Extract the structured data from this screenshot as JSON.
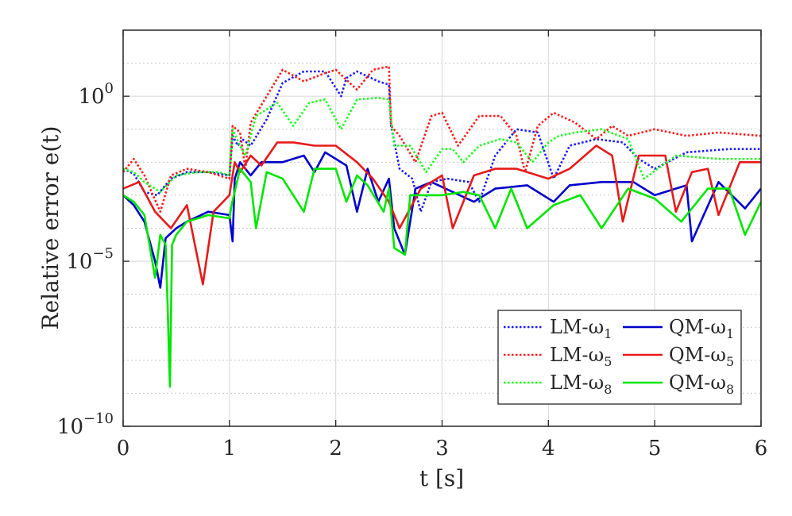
{
  "chart_data": {
    "type": "line",
    "xlabel": "t [s]",
    "ylabel": "Relative error e(t)",
    "xlim": [
      0,
      6
    ],
    "ylim_exponent": [
      -10,
      2
    ],
    "y_scale": "log",
    "grid": true,
    "legend_placement": "bottom-right",
    "x_ticks": [
      {
        "value": 0,
        "label": "0"
      },
      {
        "value": 1,
        "label": "1"
      },
      {
        "value": 2,
        "label": "2"
      },
      {
        "value": 3,
        "label": "3"
      },
      {
        "value": 4,
        "label": "4"
      },
      {
        "value": 5,
        "label": "5"
      },
      {
        "value": 6,
        "label": "6"
      }
    ],
    "y_ticks": [
      {
        "exponent": 0,
        "base": "10",
        "power": "0"
      },
      {
        "exponent": -5,
        "base": "10",
        "power": "−5"
      },
      {
        "exponent": -10,
        "base": "10",
        "power": "−10"
      }
    ],
    "series": [
      {
        "name": "LM-ω1",
        "name_main": "LM-ω",
        "name_sub": "1",
        "color": "#1a1aff",
        "style": "dotted",
        "x": [
          0,
          0.1,
          0.2,
          0.32,
          0.45,
          0.6,
          0.8,
          1.0,
          1.03,
          1.08,
          1.12,
          1.2,
          1.35,
          1.5,
          1.7,
          1.9,
          2.05,
          2.1,
          2.2,
          2.4,
          2.5,
          2.52,
          2.6,
          2.72,
          2.8,
          2.9,
          3.05,
          3.25,
          3.35,
          3.5,
          3.7,
          3.9,
          4.05,
          4.2,
          4.45,
          4.7,
          4.85,
          5.0,
          5.3,
          5.7,
          6.0
        ],
        "y_exp": [
          -2.2,
          -2.35,
          -2.9,
          -3.0,
          -2.5,
          -2.3,
          -2.3,
          -2.4,
          -1.2,
          -1.5,
          -1.3,
          -1.5,
          -0.7,
          0.4,
          0.75,
          0.75,
          0.0,
          0.55,
          0.75,
          0.45,
          0.35,
          -0.9,
          -2.2,
          -2.5,
          -3.5,
          -2.6,
          -2.5,
          -2.6,
          -3.2,
          -1.8,
          -1.0,
          -1.1,
          -2.5,
          -1.5,
          -1.3,
          -1.4,
          -1.9,
          -2.2,
          -1.7,
          -1.6,
          -1.6
        ]
      },
      {
        "name": "QM-ω1",
        "name_main": "QM-ω",
        "name_sub": "1",
        "color": "#0000cc",
        "style": "solid",
        "x": [
          0,
          0.1,
          0.2,
          0.3,
          0.35,
          0.4,
          0.5,
          0.6,
          0.8,
          1.0,
          1.03,
          1.05,
          1.1,
          1.2,
          1.3,
          1.5,
          1.7,
          1.8,
          1.9,
          2.0,
          2.1,
          2.2,
          2.3,
          2.4,
          2.5,
          2.55,
          2.65,
          2.75,
          2.9,
          3.1,
          3.3,
          3.5,
          3.8,
          4.05,
          4.2,
          4.5,
          4.8,
          5.0,
          5.3,
          5.35,
          5.6,
          5.85,
          6.0
        ],
        "y_exp": [
          -3.0,
          -3.3,
          -3.8,
          -5.0,
          -5.8,
          -4.3,
          -4.0,
          -3.8,
          -3.5,
          -3.6,
          -4.4,
          -2.5,
          -2.0,
          -2.4,
          -2.0,
          -2.0,
          -1.8,
          -2.3,
          -1.7,
          -1.9,
          -2.1,
          -3.5,
          -2.2,
          -3.2,
          -2.5,
          -4.0,
          -4.8,
          -2.8,
          -2.6,
          -2.9,
          -3.2,
          -2.8,
          -2.7,
          -3.2,
          -2.7,
          -2.6,
          -2.6,
          -3.0,
          -2.7,
          -4.4,
          -2.6,
          -3.4,
          -2.8
        ]
      },
      {
        "name": "LM-ω5",
        "name_main": "LM-ω",
        "name_sub": "5",
        "color": "#ff1a1a",
        "style": "dotted",
        "x": [
          0,
          0.1,
          0.2,
          0.35,
          0.45,
          0.6,
          0.8,
          1.0,
          1.03,
          1.1,
          1.15,
          1.2,
          1.35,
          1.5,
          1.7,
          1.9,
          2.0,
          2.2,
          2.35,
          2.5,
          2.52,
          2.6,
          2.75,
          2.9,
          3.0,
          3.15,
          3.35,
          3.55,
          3.7,
          3.78,
          3.9,
          4.05,
          4.25,
          4.45,
          4.6,
          4.75,
          5.0,
          5.3,
          5.6,
          6.0
        ],
        "y_exp": [
          -2.3,
          -1.9,
          -2.4,
          -3.5,
          -2.4,
          -2.2,
          -2.3,
          -2.5,
          -0.9,
          -1.1,
          -2.2,
          -0.8,
          0.0,
          0.8,
          0.45,
          0.7,
          0.8,
          0.2,
          0.8,
          0.9,
          -0.9,
          -1.2,
          -2.0,
          -0.6,
          -0.5,
          -1.5,
          -0.6,
          -0.6,
          -1.2,
          -2.3,
          -0.9,
          -0.5,
          -0.8,
          -1.3,
          -0.9,
          -1.2,
          -1.0,
          -1.2,
          -1.1,
          -1.2
        ]
      },
      {
        "name": "QM-ω5",
        "name_main": "QM-ω",
        "name_sub": "5",
        "color": "#e61a1a",
        "style": "solid",
        "x": [
          0,
          0.15,
          0.3,
          0.45,
          0.6,
          0.75,
          0.85,
          1.0,
          1.05,
          1.1,
          1.2,
          1.3,
          1.45,
          1.6,
          1.8,
          2.0,
          2.2,
          2.35,
          2.5,
          2.6,
          2.8,
          3.0,
          3.1,
          3.3,
          3.5,
          3.7,
          4.0,
          4.2,
          4.45,
          4.6,
          4.7,
          4.85,
          5.1,
          5.2,
          5.35,
          5.5,
          5.6,
          5.8,
          6.0
        ],
        "y_exp": [
          -2.8,
          -2.6,
          -3.5,
          -4.0,
          -3.3,
          -5.7,
          -3.5,
          -3.0,
          -2.0,
          -2.3,
          -1.8,
          -2.1,
          -1.4,
          -1.4,
          -1.5,
          -1.5,
          -2.0,
          -2.5,
          -3.2,
          -4.0,
          -2.8,
          -2.4,
          -4.0,
          -2.4,
          -2.2,
          -2.2,
          -2.5,
          -2.2,
          -1.5,
          -1.8,
          -3.8,
          -1.8,
          -1.8,
          -3.5,
          -2.3,
          -2.2,
          -3.6,
          -2.0,
          -2.0
        ]
      },
      {
        "name": "LM-ω8",
        "name_main": "LM-ω",
        "name_sub": "8",
        "color": "#1aff1a",
        "style": "dotted",
        "x": [
          0,
          0.1,
          0.2,
          0.35,
          0.5,
          0.7,
          0.9,
          1.0,
          1.03,
          1.1,
          1.15,
          1.25,
          1.45,
          1.6,
          1.75,
          1.9,
          2.05,
          2.2,
          2.4,
          2.5,
          2.55,
          2.7,
          2.85,
          3.0,
          3.1,
          3.2,
          3.35,
          3.55,
          3.7,
          3.85,
          4.0,
          4.1,
          4.25,
          4.5,
          4.75,
          4.9,
          5.2,
          5.6,
          6.0
        ],
        "y_exp": [
          -2.2,
          -2.3,
          -2.6,
          -2.9,
          -2.4,
          -2.3,
          -2.3,
          -2.4,
          -1.0,
          -1.5,
          -1.8,
          -0.6,
          -0.2,
          -0.9,
          -0.2,
          -0.1,
          -1.0,
          -0.1,
          -0.05,
          -0.1,
          -1.5,
          -1.5,
          -2.3,
          -1.6,
          -1.6,
          -2.0,
          -1.5,
          -1.3,
          -1.4,
          -2.0,
          -1.4,
          -1.2,
          -1.1,
          -1.0,
          -1.3,
          -2.5,
          -1.8,
          -1.9,
          -1.9
        ]
      },
      {
        "name": "QM-ω8",
        "name_main": "QM-ω",
        "name_sub": "8",
        "color": "#00e600",
        "style": "solid",
        "x": [
          0,
          0.1,
          0.2,
          0.3,
          0.35,
          0.4,
          0.42,
          0.44,
          0.46,
          0.5,
          0.6,
          0.8,
          1.0,
          1.02,
          1.1,
          1.2,
          1.25,
          1.35,
          1.5,
          1.7,
          1.8,
          2.0,
          2.1,
          2.2,
          2.3,
          2.45,
          2.5,
          2.55,
          2.65,
          2.7,
          2.85,
          3.0,
          3.2,
          3.35,
          3.5,
          3.65,
          3.8,
          4.05,
          4.3,
          4.5,
          4.75,
          5.0,
          5.25,
          5.5,
          5.7,
          5.85,
          6.0
        ],
        "y_exp": [
          -3.0,
          -3.2,
          -3.6,
          -5.5,
          -4.2,
          -4.5,
          -6.5,
          -8.8,
          -4.5,
          -4.2,
          -3.8,
          -3.6,
          -3.7,
          -3.3,
          -2.2,
          -2.6,
          -4.0,
          -2.3,
          -2.5,
          -3.5,
          -2.2,
          -2.2,
          -3.2,
          -2.4,
          -2.7,
          -3.5,
          -2.8,
          -4.6,
          -4.8,
          -3.0,
          -3.0,
          -3.0,
          -2.9,
          -3.0,
          -4.0,
          -2.8,
          -4.0,
          -3.3,
          -3.0,
          -4.0,
          -2.8,
          -3.1,
          -3.8,
          -2.8,
          -2.8,
          -4.2,
          -3.2
        ]
      }
    ]
  }
}
